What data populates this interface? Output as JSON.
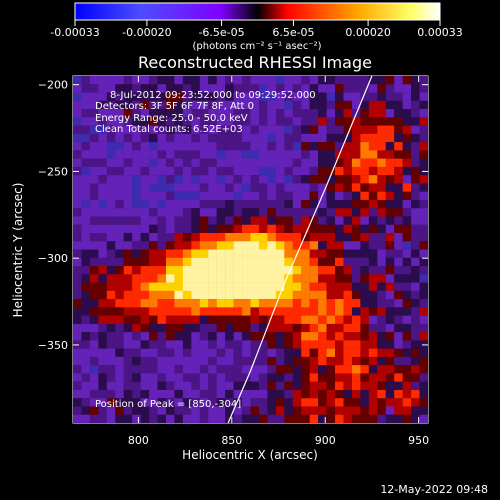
{
  "colors": {
    "background": "#000000",
    "foreground": "#ffffff",
    "limb": "#ffffff",
    "colorbar_stops": [
      "#0000ff",
      "#4d4dff",
      "#7f00ff",
      "#000000",
      "#ff0000",
      "#ffaa00",
      "#ffff66",
      "#ffffff"
    ]
  },
  "icons": {
    "colorbar": "colorbar-icon",
    "limb": "limb-curve-icon"
  },
  "chart_data": {
    "type": "heatmap",
    "title": "Reconstructed RHESSI Image",
    "xlabel": "Heliocentric X (arcsec)",
    "ylabel": "Heliocentric Y (arcsec)",
    "xlim": [
      765,
      955
    ],
    "ylim": [
      -395,
      -195
    ],
    "xticks": [
      800,
      850,
      900,
      950
    ],
    "yticks": [
      -200,
      -250,
      -300,
      -350
    ],
    "xtick_labels": [
      "800",
      "850",
      "900",
      "950"
    ],
    "ytick_labels": [
      "−200",
      "−250",
      "−300",
      "−350"
    ],
    "colorbar": {
      "min": -0.00033,
      "max": 0.00033,
      "ticks": [
        -0.00033,
        -0.0002,
        -6.5e-05,
        6.5e-05,
        0.0002,
        0.00033
      ],
      "tick_labels": [
        "-0.00033",
        "-0.00020",
        "-6.5e-05",
        "6.5e-05",
        "0.00020",
        "0.00033"
      ],
      "unit": "(photons cm⁻² s⁻¹ asec⁻²)"
    },
    "annotations": {
      "time_range": "8-Jul-2012 09:23:52.000 to 09:29:52.000",
      "detectors": "Detectors: 3F 5F 6F 7F 8F, Att 0",
      "energy": "Energy Range: 25.0 - 50.0 keV",
      "clean_total": "Clean     Total counts: 6.52E+03",
      "peak": "Position of Peak = [850,-304]",
      "timestamp": "12-May-2022 09:48"
    },
    "peak": {
      "x": 850,
      "y": -304
    },
    "limb_line": [
      {
        "x": 925,
        "y": -195
      },
      {
        "x": 900,
        "y": -260
      },
      {
        "x": 878,
        "y": -315
      },
      {
        "x": 860,
        "y": -365
      },
      {
        "x": 848,
        "y": -395
      }
    ],
    "intensity_sources": [
      {
        "x": 850,
        "y": -304,
        "sx": 18,
        "sy": 12,
        "amp": 1.0
      },
      {
        "x": 832,
        "y": -316,
        "sx": 34,
        "sy": 14,
        "amp": 0.65
      },
      {
        "x": 875,
        "y": -302,
        "sx": 18,
        "sy": 18,
        "amp": 0.45
      },
      {
        "x": 925,
        "y": -245,
        "sx": 14,
        "sy": 20,
        "amp": 0.42
      },
      {
        "x": 900,
        "y": -337,
        "sx": 20,
        "sy": 18,
        "amp": 0.36
      },
      {
        "x": 920,
        "y": -370,
        "sx": 28,
        "sy": 14,
        "amp": 0.28
      },
      {
        "x": 812,
        "y": -210,
        "sx": 24,
        "sy": 12,
        "amp": 0.18
      },
      {
        "x": 798,
        "y": -328,
        "sx": 22,
        "sy": 16,
        "amp": 0.18
      },
      {
        "x": 885,
        "y": -390,
        "sx": 24,
        "sy": 10,
        "amp": 0.2
      },
      {
        "x": 790,
        "y": -385,
        "sx": 28,
        "sy": 12,
        "amp": 0.12
      }
    ]
  }
}
